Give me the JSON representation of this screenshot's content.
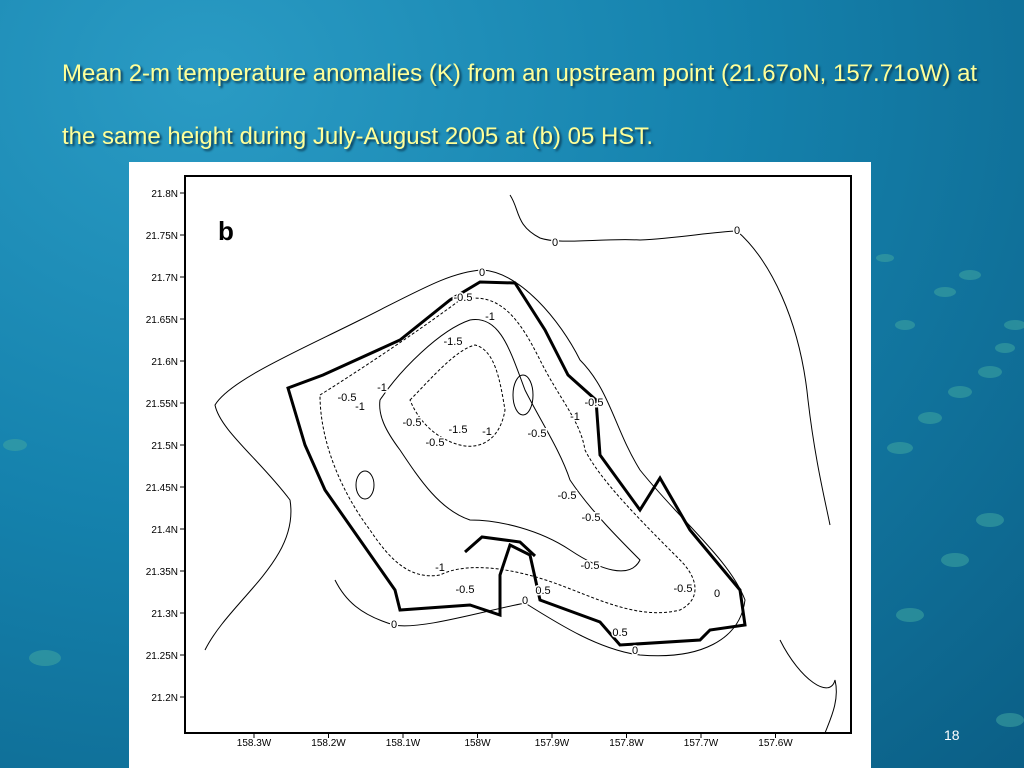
{
  "slide": {
    "title": "Mean 2-m temperature anomalies (K) from an upstream point (21.67oN, 157.71oW) at the same height during July-August 2005 at (b) 05 HST.",
    "page_number": "18"
  },
  "figure": {
    "panel_label": "b",
    "y_tick_labels": [
      "21.8N",
      "21.75N",
      "21.7N",
      "21.65N",
      "21.6N",
      "21.55N",
      "21.5N",
      "21.45N",
      "21.4N",
      "21.35N",
      "21.3N",
      "21.25N",
      "21.2N"
    ],
    "x_tick_labels": [
      "158.3W",
      "158.2W",
      "158.1W",
      "158W",
      "157.9W",
      "157.8W",
      "157.7W",
      "157.6W"
    ],
    "contour_labels": [
      "0",
      "-0.5",
      "-1",
      "-1.5",
      "-1",
      "-0.5",
      "-1",
      "-0.5",
      "-1.5",
      "-1",
      "-0.5",
      "-0.5",
      "-1",
      "-0.5",
      "-0.5",
      "-0.5",
      "-0.5",
      "-1",
      "-0.5",
      "0",
      "0.5",
      "-0.5",
      "0",
      "0.5",
      "0",
      "0",
      "0",
      "0"
    ]
  }
}
